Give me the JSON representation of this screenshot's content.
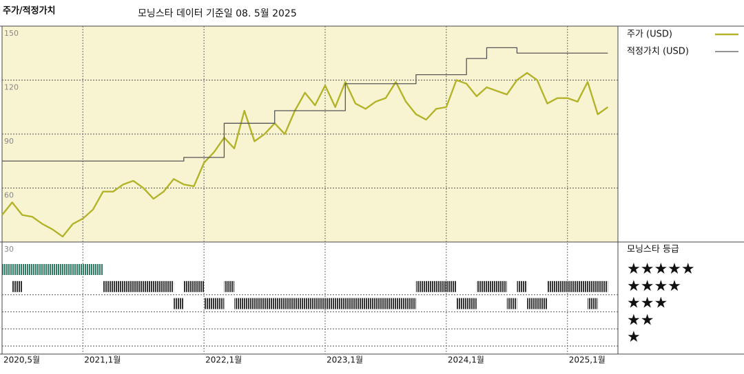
{
  "chart_data": {
    "type": "line",
    "title": "주가/적정가치",
    "subtitle": "모닝스타 데이터 기준일 08. 5월 2025",
    "xlim": [
      "2020-05",
      "2025-06"
    ],
    "xticks": [
      {
        "value": "2020-05",
        "label": "2020,5월"
      },
      {
        "value": "2021-01",
        "label": "2021,1월"
      },
      {
        "value": "2022-01",
        "label": "2022,1월"
      },
      {
        "value": "2023-01",
        "label": "2023,1월"
      },
      {
        "value": "2024-01",
        "label": "2024,1월"
      },
      {
        "value": "2025-01",
        "label": "2025,1월"
      }
    ],
    "ylim": [
      30,
      150
    ],
    "yticks": [
      30,
      60,
      90,
      120,
      150
    ],
    "grid": true,
    "series": [
      {
        "name": "주가 (USD)",
        "color": "#b3b32a",
        "x": [
          "2020-05",
          "2020-06",
          "2020-07",
          "2020-08",
          "2020-09",
          "2020-10",
          "2020-11",
          "2020-12",
          "2021-01",
          "2021-02",
          "2021-03",
          "2021-04",
          "2021-05",
          "2021-06",
          "2021-07",
          "2021-08",
          "2021-09",
          "2021-10",
          "2021-11",
          "2021-12",
          "2022-01",
          "2022-02",
          "2022-03",
          "2022-04",
          "2022-05",
          "2022-06",
          "2022-07",
          "2022-08",
          "2022-09",
          "2022-10",
          "2022-11",
          "2022-12",
          "2023-01",
          "2023-02",
          "2023-03",
          "2023-04",
          "2023-05",
          "2023-06",
          "2023-07",
          "2023-08",
          "2023-09",
          "2023-10",
          "2023-11",
          "2023-12",
          "2024-01",
          "2024-02",
          "2024-03",
          "2024-04",
          "2024-05",
          "2024-06",
          "2024-07",
          "2024-08",
          "2024-09",
          "2024-10",
          "2024-11",
          "2024-12",
          "2025-01",
          "2025-02",
          "2025-03",
          "2025-04",
          "2025-05"
        ],
        "values": [
          45,
          52,
          45,
          44,
          40,
          37,
          33,
          40,
          43,
          48,
          58,
          58,
          62,
          64,
          60,
          54,
          58,
          65,
          62,
          61,
          74,
          80,
          88,
          82,
          103,
          86,
          90,
          96,
          90,
          103,
          113,
          106,
          117,
          105,
          119,
          107,
          104,
          108,
          110,
          119,
          108,
          101,
          98,
          104,
          105,
          120,
          118,
          111,
          116,
          114,
          112,
          120,
          124,
          120,
          107,
          110,
          110,
          108,
          119,
          101,
          105
        ]
      },
      {
        "name": "적정가치 (USD)",
        "color": "#555555",
        "step": true,
        "x": [
          "2020-05",
          "2021-11",
          "2022-03",
          "2022-08",
          "2023-03",
          "2023-10",
          "2024-03",
          "2024-05",
          "2024-08",
          "2025-05"
        ],
        "values": [
          75,
          77,
          96,
          103,
          118,
          123,
          132,
          138,
          135,
          135
        ]
      }
    ],
    "rating": {
      "title": "모닝스타 등급",
      "levels": [
        "★★★★★",
        "★★★★",
        "★★★",
        "★★",
        "★"
      ],
      "colors": [
        "#2e7d62",
        "#333333"
      ],
      "bands": [
        {
          "stars": 5,
          "start": "2020-05",
          "end": "2021-03"
        },
        {
          "stars": 4,
          "start": "2020-06",
          "end": "2020-07"
        },
        {
          "stars": 4,
          "start": "2021-03",
          "end": "2021-10"
        },
        {
          "stars": 4,
          "start": "2021-11",
          "end": "2022-01"
        },
        {
          "stars": 4,
          "start": "2022-03",
          "end": "2022-04"
        },
        {
          "stars": 4,
          "start": "2023-10",
          "end": "2024-02"
        },
        {
          "stars": 4,
          "start": "2024-04",
          "end": "2024-07"
        },
        {
          "stars": 4,
          "start": "2024-08",
          "end": "2024-09"
        },
        {
          "stars": 4,
          "start": "2024-11",
          "end": "2025-05"
        },
        {
          "stars": 3,
          "start": "2021-10",
          "end": "2021-11"
        },
        {
          "stars": 3,
          "start": "2022-01",
          "end": "2022-03"
        },
        {
          "stars": 3,
          "start": "2022-04",
          "end": "2023-10"
        },
        {
          "stars": 3,
          "start": "2024-02",
          "end": "2024-04"
        },
        {
          "stars": 3,
          "start": "2024-07",
          "end": "2024-08"
        },
        {
          "stars": 3,
          "start": "2024-09",
          "end": "2024-11"
        },
        {
          "stars": 3,
          "start": "2025-03",
          "end": "2025-04"
        }
      ]
    }
  }
}
